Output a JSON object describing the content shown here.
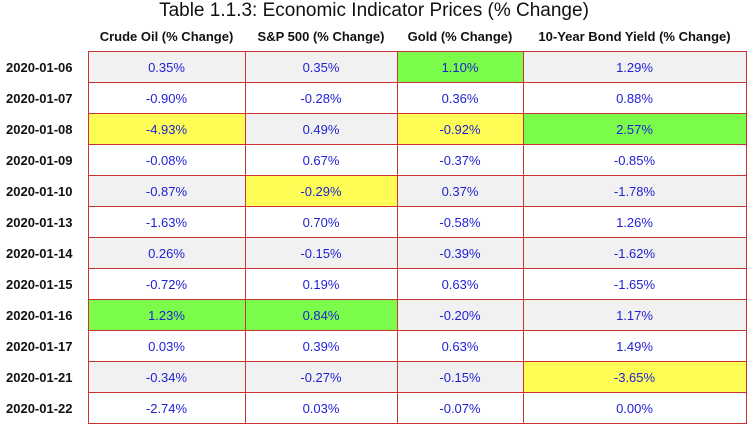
{
  "chart_data": {
    "type": "table",
    "title": "Table 1.1.3: Economic Indicator Prices (% Change)",
    "columns": [
      "Crude Oil (% Change)",
      "S&P 500 (% Change)",
      "Gold (% Change)",
      "10-Year Bond Yield (% Change)"
    ],
    "rows": [
      {
        "date": "2020-01-06",
        "values": [
          "0.35%",
          "0.35%",
          "1.10%",
          "1.29%"
        ],
        "highlight": [
          null,
          null,
          "max",
          null
        ]
      },
      {
        "date": "2020-01-07",
        "values": [
          "-0.90%",
          "-0.28%",
          "0.36%",
          "0.88%"
        ],
        "highlight": [
          null,
          null,
          null,
          null
        ]
      },
      {
        "date": "2020-01-08",
        "values": [
          "-4.93%",
          "0.49%",
          "-0.92%",
          "2.57%"
        ],
        "highlight": [
          "min",
          null,
          "min",
          "max"
        ]
      },
      {
        "date": "2020-01-09",
        "values": [
          "-0.08%",
          "0.67%",
          "-0.37%",
          "-0.85%"
        ],
        "highlight": [
          null,
          null,
          null,
          null
        ]
      },
      {
        "date": "2020-01-10",
        "values": [
          "-0.87%",
          "-0.29%",
          "0.37%",
          "-1.78%"
        ],
        "highlight": [
          null,
          "min",
          null,
          null
        ]
      },
      {
        "date": "2020-01-13",
        "values": [
          "-1.63%",
          "0.70%",
          "-0.58%",
          "1.26%"
        ],
        "highlight": [
          null,
          null,
          null,
          null
        ]
      },
      {
        "date": "2020-01-14",
        "values": [
          "0.26%",
          "-0.15%",
          "-0.39%",
          "-1.62%"
        ],
        "highlight": [
          null,
          null,
          null,
          null
        ]
      },
      {
        "date": "2020-01-15",
        "values": [
          "-0.72%",
          "0.19%",
          "0.63%",
          "-1.65%"
        ],
        "highlight": [
          null,
          null,
          null,
          null
        ]
      },
      {
        "date": "2020-01-16",
        "values": [
          "1.23%",
          "0.84%",
          "-0.20%",
          "1.17%"
        ],
        "highlight": [
          "max",
          "max",
          null,
          null
        ]
      },
      {
        "date": "2020-01-17",
        "values": [
          "0.03%",
          "0.39%",
          "0.63%",
          "1.49%"
        ],
        "highlight": [
          null,
          null,
          null,
          null
        ]
      },
      {
        "date": "2020-01-21",
        "values": [
          "-0.34%",
          "-0.27%",
          "-0.15%",
          "-3.65%"
        ],
        "highlight": [
          null,
          null,
          null,
          "min"
        ]
      },
      {
        "date": "2020-01-22",
        "values": [
          "-2.74%",
          "0.03%",
          "-0.07%",
          "0.00%"
        ],
        "highlight": [
          null,
          null,
          null,
          null
        ]
      }
    ],
    "colors": {
      "value_text": "#1f1fd6",
      "cell_border": "#cc3333",
      "stripe": "#f1f1f1",
      "max_highlight": "#7cfc4a",
      "min_highlight": "#fdfd55"
    }
  }
}
